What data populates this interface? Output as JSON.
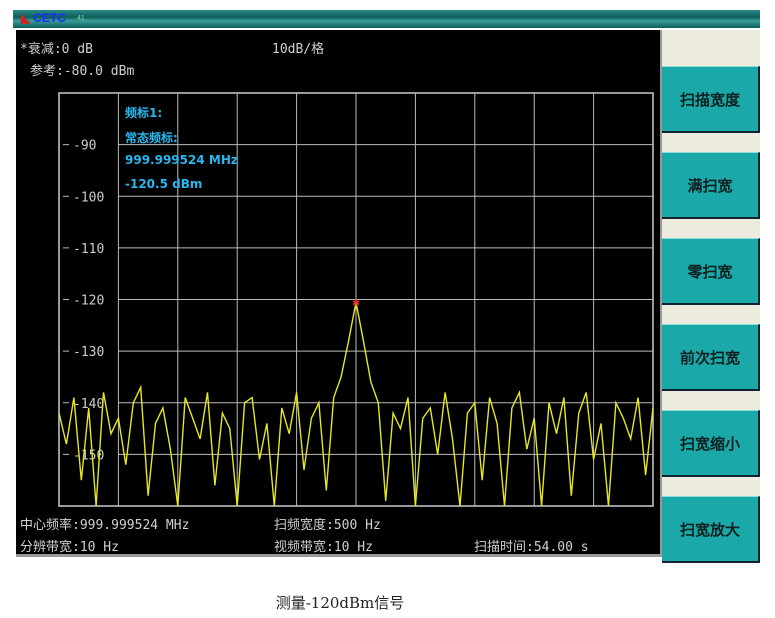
{
  "window": {
    "logo": "CETC",
    "version": "41"
  },
  "header": {
    "attenuation": "*衰减:0 dB",
    "scale": "10dB/格",
    "reference": "参考:-80.0 dBm"
  },
  "marker": {
    "label": "频标1:",
    "mode": "常态频标:",
    "frequency": "999.999524 MHz",
    "level": "-120.5 dBm",
    "color": "#27b8f0"
  },
  "footer": {
    "center_freq": "中心频率:999.999524 MHz",
    "span": "扫频宽度:500 Hz",
    "rbw": "分辨带宽:10 Hz",
    "vbw": "视频带宽:10 Hz",
    "sweep_time": "扫描时间:54.00 s"
  },
  "softkeys": [
    "扫描宽度",
    "满扫宽",
    "零扫宽",
    "前次扫宽",
    "扫宽缩小",
    "扫宽放大"
  ],
  "caption": "测量-120dBm信号",
  "chart_data": {
    "type": "line",
    "ylim": [
      -160,
      -80
    ],
    "xlim_hz": [
      -250,
      250
    ],
    "y_tick_labels": [
      "-90",
      "-100",
      "-110",
      "-120",
      "-130",
      "-140",
      "-150"
    ],
    "y_ticks": [
      -90,
      -100,
      -110,
      -120,
      -130,
      -140,
      -150
    ],
    "grid": true,
    "trace_color": "#e8e820",
    "marker_point": {
      "x_hz": 0,
      "y": -120.5
    },
    "trace": [
      -142,
      -148,
      -139,
      -155,
      -141,
      -160,
      -138,
      -146,
      -143,
      -152,
      -140,
      -137,
      -158,
      -144,
      -141,
      -149,
      -160,
      -139,
      -143,
      -147,
      -138,
      -156,
      -142,
      -145,
      -160,
      -140,
      -139,
      -151,
      -144,
      -160,
      -141,
      -146,
      -138,
      -153,
      -143,
      -140,
      -157,
      -139,
      -135,
      -128,
      -120.5,
      -128,
      -136,
      -140,
      -159,
      -142,
      -145,
      -139,
      -160,
      -143,
      -141,
      -150,
      -138,
      -147,
      -160,
      -142,
      -140,
      -155,
      -139,
      -144,
      -160,
      -141,
      -138,
      -149,
      -143,
      -160,
      -140,
      -146,
      -139,
      -158,
      -142,
      -138,
      -151,
      -144,
      -160,
      -140,
      -143,
      -147,
      -139,
      -154,
      -141
    ]
  }
}
